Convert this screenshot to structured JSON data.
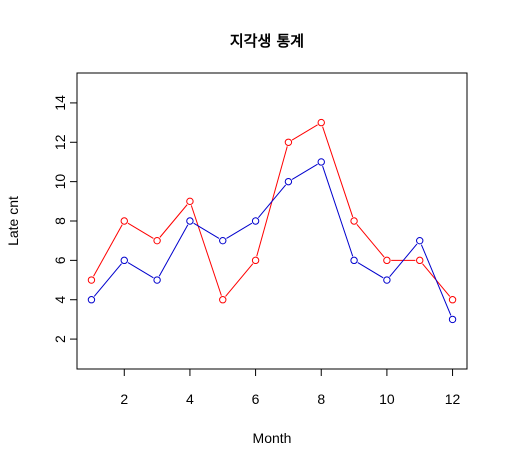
{
  "chart_data": {
    "type": "line",
    "title": "지각생 통계",
    "xlabel": "Month",
    "ylabel": "Late cnt",
    "x": [
      1,
      2,
      3,
      4,
      5,
      6,
      7,
      8,
      9,
      10,
      11,
      12
    ],
    "xlim": [
      0.56,
      12.44
    ],
    "ylim": [
      0.48,
      15.52
    ],
    "xticks": [
      2,
      4,
      6,
      8,
      10,
      12
    ],
    "yticks": [
      2,
      4,
      6,
      8,
      10,
      12,
      14
    ],
    "grid": false,
    "series": [
      {
        "values": [
          5,
          8,
          7,
          9,
          4,
          6,
          12,
          13,
          8,
          6,
          6,
          4
        ],
        "color": "#ff0000",
        "marker": "open-circle"
      },
      {
        "values": [
          4,
          6,
          5,
          8,
          7,
          8,
          10,
          11,
          6,
          5,
          7,
          3
        ],
        "color": "#0000cd",
        "marker": "open-circle"
      }
    ]
  }
}
